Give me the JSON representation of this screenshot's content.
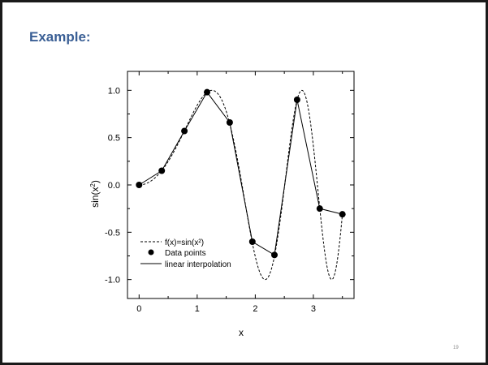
{
  "slide": {
    "title": "Example:",
    "page_number": "19"
  },
  "chart_data": {
    "type": "line",
    "xlabel": "x",
    "xlim": [
      -0.2,
      3.7
    ],
    "ylim": [
      -1.2,
      1.2
    ],
    "xticks": [
      0,
      1,
      2,
      3
    ],
    "xtick_labels": [
      "0",
      "1",
      "2",
      "3"
    ],
    "yticks": [
      1.0,
      0.5,
      0.0,
      -0.5,
      -1.0
    ],
    "ytick_labels": [
      "1.0",
      "0.5",
      "0.0",
      "-0.5",
      "-1.0"
    ],
    "grid": false,
    "legend_position": "bottom-left",
    "series": [
      {
        "name": "f(x)=sin(x²)",
        "kind": "function",
        "style": "dashed",
        "function": "sin(x^2)",
        "x_range": [
          0,
          3.5
        ]
      },
      {
        "name": "Data points",
        "kind": "markers",
        "x": [
          0,
          0.39,
          0.78,
          1.17,
          1.56,
          1.95,
          2.33,
          2.72,
          3.11,
          3.5
        ],
        "y": [
          0,
          0.15,
          0.57,
          0.98,
          0.66,
          -0.6,
          -0.74,
          0.9,
          -0.25,
          -0.31
        ]
      },
      {
        "name": "linear interpolation",
        "kind": "line",
        "style": "solid",
        "x": [
          0,
          0.39,
          0.78,
          1.17,
          1.56,
          1.95,
          2.33,
          2.72,
          3.11,
          3.5
        ],
        "y": [
          0,
          0.15,
          0.57,
          0.98,
          0.66,
          -0.6,
          -0.74,
          0.9,
          -0.25,
          -0.31
        ]
      }
    ]
  }
}
